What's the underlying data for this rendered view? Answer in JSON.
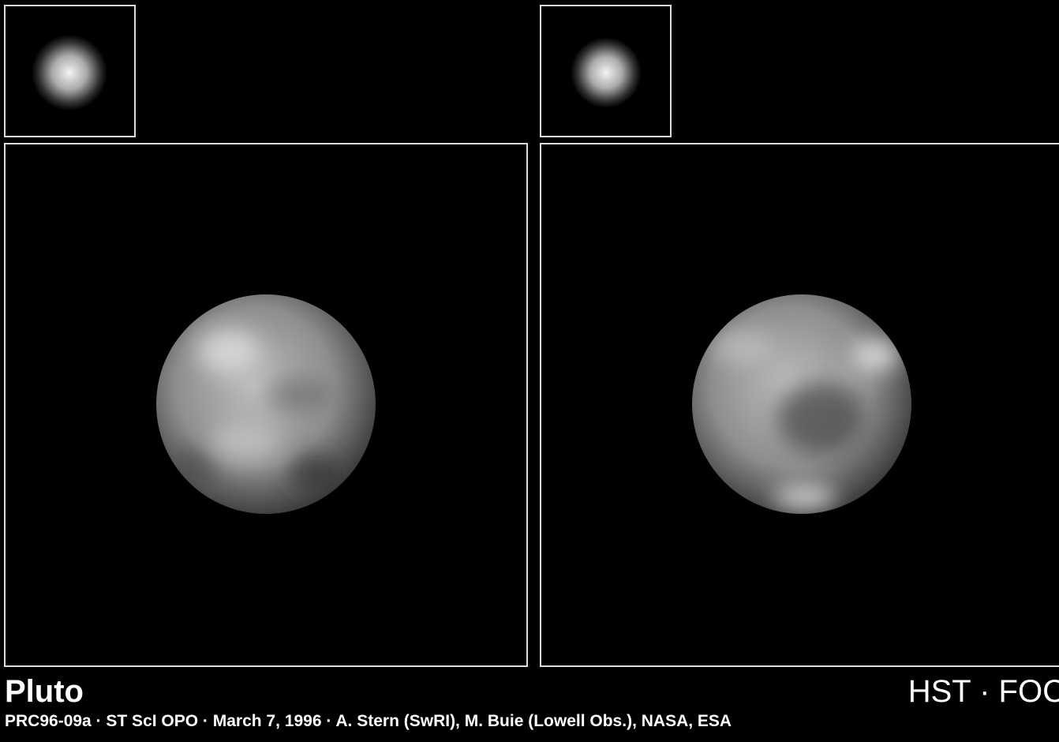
{
  "title": "Pluto",
  "instrument": "HST · FOC",
  "credit": "PRC96-09a · ST ScI OPO · March 7, 1996 · A. Stern (SwRI), M. Buie (Lowell Obs.), NASA, ESA"
}
